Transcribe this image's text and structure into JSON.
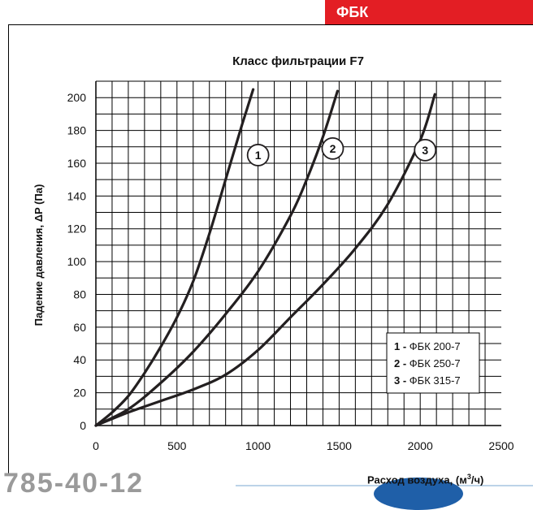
{
  "header": {
    "brand": "ФБК"
  },
  "footer": {
    "phone_fragment": "785-40-12"
  },
  "chart_data": {
    "type": "line",
    "title": "Класс фильтрации F7",
    "xlabel_prefix": "Расход воздуха, (м",
    "xlabel_sup": "3",
    "xlabel_suffix": "/ч)",
    "ylabel": "Падение давления, ΔP (Па)",
    "xlim": [
      0,
      2500
    ],
    "ylim": [
      0,
      210
    ],
    "x_ticks": [
      0,
      500,
      1000,
      1500,
      2000,
      2500
    ],
    "y_ticks": [
      0,
      20,
      40,
      60,
      80,
      100,
      120,
      140,
      160,
      180,
      200
    ],
    "grid": true,
    "legend_position": "bottom-right",
    "colors": {
      "line": "#231f20",
      "grid": "#000000",
      "brand": "#e31e24"
    },
    "series": [
      {
        "id": "1",
        "name": "ФБК 200-7",
        "label_at": [
          860,
          162
        ],
        "points": [
          [
            0,
            0
          ],
          [
            100,
            8
          ],
          [
            200,
            18
          ],
          [
            300,
            32
          ],
          [
            400,
            48
          ],
          [
            500,
            66
          ],
          [
            600,
            88
          ],
          [
            700,
            117
          ],
          [
            800,
            150
          ],
          [
            900,
            183
          ],
          [
            970,
            205
          ]
        ]
      },
      {
        "id": "2",
        "name": "ФБК 250-7",
        "label_at": [
          1320,
          166
        ],
        "points": [
          [
            0,
            0
          ],
          [
            200,
            10
          ],
          [
            400,
            26
          ],
          [
            600,
            45
          ],
          [
            800,
            68
          ],
          [
            1000,
            94
          ],
          [
            1200,
            128
          ],
          [
            1300,
            150
          ],
          [
            1400,
            176
          ],
          [
            1490,
            204
          ]
        ]
      },
      {
        "id": "3",
        "name": "ФБК 315-7",
        "label_at": [
          1890,
          165
        ],
        "points": [
          [
            0,
            0
          ],
          [
            200,
            8
          ],
          [
            400,
            15
          ],
          [
            600,
            22
          ],
          [
            800,
            31
          ],
          [
            1000,
            46
          ],
          [
            1200,
            66
          ],
          [
            1400,
            86
          ],
          [
            1600,
            108
          ],
          [
            1800,
            135
          ],
          [
            2000,
            174
          ],
          [
            2090,
            202
          ]
        ]
      }
    ],
    "legend": [
      {
        "id": "1",
        "sep": " - ",
        "name": "ФБК 200-7"
      },
      {
        "id": "2",
        "sep": " - ",
        "name": "ФБК 250-7"
      },
      {
        "id": "3",
        "sep": " - ",
        "name": "ФБК 315-7"
      }
    ]
  }
}
